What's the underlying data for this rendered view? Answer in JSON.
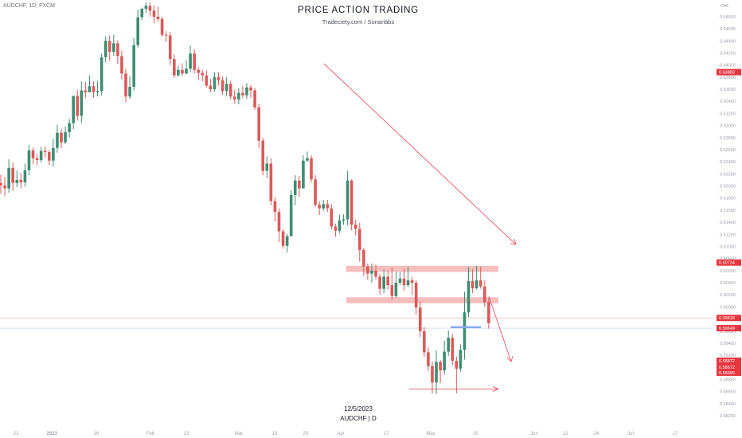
{
  "header": {
    "symbol": "AUDCHF, 1D, FXCM",
    "title": "PRICE  ACTION  TRADING",
    "subtitle": "Tradeciety.com / Sonarlabs",
    "currency": "CHF"
  },
  "footer": {
    "date": "12/5/2023",
    "pair": "AUDCHF | D"
  },
  "colors": {
    "up": "#3f8c72",
    "down": "#d95a5a",
    "zone": "#f4a8a8",
    "arrow": "#e8586a",
    "price_label": "#e8363f",
    "blue_line": "#8aa7f0",
    "axis_text": "#9a9ea8"
  },
  "chart_data": {
    "type": "candlestick",
    "axis": {
      "ylim": [
        0.5803,
        0.6501
      ],
      "ticks": [
        "0.64800",
        "0.64600",
        "0.64400",
        "0.64200",
        "0.64000",
        "0.63800",
        "0.63600",
        "0.63400",
        "0.63200",
        "0.63000",
        "0.62800",
        "0.62600",
        "0.62400",
        "0.62200",
        "0.62000",
        "0.61800",
        "0.61600",
        "0.61400",
        "0.61200",
        "0.61000",
        "0.60800",
        "0.60600",
        "0.60400",
        "0.60200",
        "0.60000",
        "0.59800",
        "0.59600",
        "0.59400",
        "0.59200",
        "0.59000",
        "0.58800",
        "0.58600",
        "0.58400",
        "0.58200",
        "0.58000",
        "0.57800",
        "0.57600"
      ],
      "x_labels": [
        "21",
        "2023",
        "16",
        "Feb",
        "13",
        "Mar",
        "13",
        "20",
        "Apr",
        "17",
        "May",
        "15",
        "Jun",
        "12",
        "24",
        "Jul",
        "17"
      ],
      "price_labels": [
        {
          "text": "0.63883",
          "value": 0.63883
        },
        {
          "text": "0.60734",
          "value": 0.60734
        },
        {
          "text": "0.59818",
          "value": 0.59818
        },
        {
          "text": "0.59649",
          "value": 0.59649
        },
        {
          "text": "0.58872",
          "value": 0.58872
        },
        {
          "text": "0.58672",
          "value": 0.58672
        },
        {
          "text": "0.58589",
          "value": 0.58589
        }
      ]
    },
    "zones": [
      {
        "from": 0.6058,
        "to": 0.6068
      },
      {
        "from": 0.6006,
        "to": 0.6016
      }
    ],
    "levels": [
      {
        "name": "support-line",
        "value": 0.58643
      },
      {
        "name": "blue-line",
        "value": 0.59665
      }
    ],
    "candles": [
      [
        0.6205,
        0.6201,
        0.6219,
        0.6187
      ],
      [
        0.6201,
        0.6196,
        0.6215,
        0.6183
      ],
      [
        0.6196,
        0.623,
        0.6244,
        0.6189
      ],
      [
        0.623,
        0.6205,
        0.6239,
        0.6192
      ],
      [
        0.6205,
        0.621,
        0.6226,
        0.6198
      ],
      [
        0.621,
        0.6206,
        0.6222,
        0.6196
      ],
      [
        0.6206,
        0.6226,
        0.6237,
        0.6199
      ],
      [
        0.6226,
        0.6259,
        0.6268,
        0.6218
      ],
      [
        0.6259,
        0.6246,
        0.6264,
        0.6236
      ],
      [
        0.6246,
        0.6243,
        0.6253,
        0.6234
      ],
      [
        0.6243,
        0.6258,
        0.6265,
        0.6239
      ],
      [
        0.6258,
        0.6256,
        0.6266,
        0.6247
      ],
      [
        0.6256,
        0.6242,
        0.626,
        0.6234
      ],
      [
        0.6242,
        0.6263,
        0.6278,
        0.6232
      ],
      [
        0.6263,
        0.6288,
        0.6301,
        0.6255
      ],
      [
        0.6288,
        0.6272,
        0.6294,
        0.6262
      ],
      [
        0.6272,
        0.6289,
        0.6298,
        0.6269
      ],
      [
        0.6289,
        0.6304,
        0.6311,
        0.628
      ],
      [
        0.6304,
        0.6349,
        0.6349,
        0.6294
      ],
      [
        0.6349,
        0.6316,
        0.6359,
        0.6308
      ],
      [
        0.6316,
        0.6358,
        0.6373,
        0.6304
      ],
      [
        0.6358,
        0.6355,
        0.6372,
        0.6346
      ],
      [
        0.6355,
        0.6365,
        0.6383,
        0.6357
      ],
      [
        0.6365,
        0.6355,
        0.6373,
        0.6346
      ],
      [
        0.6355,
        0.6357,
        0.6374,
        0.6348
      ],
      [
        0.6357,
        0.6413,
        0.6419,
        0.635
      ],
      [
        0.6413,
        0.644,
        0.6448,
        0.6405
      ],
      [
        0.644,
        0.6422,
        0.6449,
        0.6407
      ],
      [
        0.6422,
        0.6436,
        0.645,
        0.6415
      ],
      [
        0.6436,
        0.6415,
        0.6441,
        0.6402
      ],
      [
        0.6415,
        0.6386,
        0.6424,
        0.6376
      ],
      [
        0.6386,
        0.6348,
        0.6394,
        0.6339
      ],
      [
        0.6348,
        0.6364,
        0.6382,
        0.6344
      ],
      [
        0.6364,
        0.6433,
        0.6445,
        0.6357
      ],
      [
        0.6433,
        0.6479,
        0.6492,
        0.6429
      ],
      [
        0.6479,
        0.6493,
        0.6495,
        0.6474
      ],
      [
        0.6493,
        0.6498,
        0.6504,
        0.6486
      ],
      [
        0.6498,
        0.649,
        0.6504,
        0.648
      ],
      [
        0.649,
        0.648,
        0.6499,
        0.6469
      ],
      [
        0.648,
        0.6476,
        0.6496,
        0.6471
      ],
      [
        0.6476,
        0.645,
        0.648,
        0.6446
      ],
      [
        0.645,
        0.6449,
        0.6456,
        0.6438
      ],
      [
        0.6449,
        0.641,
        0.6455,
        0.64
      ],
      [
        0.641,
        0.6383,
        0.6417,
        0.6379
      ],
      [
        0.6383,
        0.6392,
        0.6399,
        0.6381
      ],
      [
        0.6392,
        0.6386,
        0.6403,
        0.6382
      ],
      [
        0.6386,
        0.6394,
        0.6408,
        0.6385
      ],
      [
        0.6394,
        0.6419,
        0.6432,
        0.6388
      ],
      [
        0.6419,
        0.6392,
        0.6426,
        0.6386
      ],
      [
        0.6392,
        0.6387,
        0.6396,
        0.6375
      ],
      [
        0.6387,
        0.6383,
        0.6392,
        0.6373
      ],
      [
        0.6383,
        0.6366,
        0.6391,
        0.6363
      ],
      [
        0.6366,
        0.636,
        0.6377,
        0.6355
      ],
      [
        0.636,
        0.638,
        0.6388,
        0.6356
      ],
      [
        0.638,
        0.6375,
        0.6388,
        0.6366
      ],
      [
        0.6375,
        0.6357,
        0.6381,
        0.6351
      ],
      [
        0.6357,
        0.6369,
        0.638,
        0.6349
      ],
      [
        0.6369,
        0.6348,
        0.6374,
        0.6343
      ],
      [
        0.6348,
        0.6343,
        0.6359,
        0.6336
      ],
      [
        0.6343,
        0.6354,
        0.6362,
        0.6335
      ],
      [
        0.6354,
        0.635,
        0.6365,
        0.6345
      ],
      [
        0.635,
        0.6363,
        0.637,
        0.6344
      ],
      [
        0.6363,
        0.6358,
        0.6367,
        0.6346
      ],
      [
        0.6358,
        0.633,
        0.6362,
        0.6326
      ],
      [
        0.633,
        0.6275,
        0.6336,
        0.6262
      ],
      [
        0.6275,
        0.6225,
        0.628,
        0.6218
      ],
      [
        0.6225,
        0.6237,
        0.6249,
        0.6213
      ],
      [
        0.6237,
        0.6175,
        0.6246,
        0.6168
      ],
      [
        0.6175,
        0.6157,
        0.6182,
        0.6141
      ],
      [
        0.6157,
        0.6125,
        0.6163,
        0.6107
      ],
      [
        0.6125,
        0.6101,
        0.6129,
        0.6096
      ],
      [
        0.6101,
        0.6117,
        0.6121,
        0.609
      ],
      [
        0.6117,
        0.6185,
        0.6193,
        0.6118
      ],
      [
        0.6185,
        0.6209,
        0.6218,
        0.6168
      ],
      [
        0.6209,
        0.6196,
        0.6217,
        0.6182
      ],
      [
        0.6196,
        0.6242,
        0.6251,
        0.6196
      ],
      [
        0.6242,
        0.6246,
        0.6257,
        0.624
      ],
      [
        0.6246,
        0.6211,
        0.6251,
        0.6206
      ],
      [
        0.6211,
        0.6169,
        0.6218,
        0.6165
      ],
      [
        0.6169,
        0.6163,
        0.6175,
        0.6152
      ],
      [
        0.6163,
        0.617,
        0.6177,
        0.6159
      ],
      [
        0.617,
        0.6163,
        0.6177,
        0.6157
      ],
      [
        0.6163,
        0.6133,
        0.617,
        0.6128
      ],
      [
        0.6133,
        0.6126,
        0.6138,
        0.6116
      ],
      [
        0.6126,
        0.6143,
        0.6152,
        0.6122
      ],
      [
        0.6143,
        0.6145,
        0.6153,
        0.6136
      ],
      [
        0.6145,
        0.6209,
        0.6225,
        0.6135
      ],
      [
        0.6209,
        0.6136,
        0.6211,
        0.6127
      ],
      [
        0.6136,
        0.6129,
        0.6144,
        0.6118
      ],
      [
        0.6129,
        0.6094,
        0.6139,
        0.6075
      ],
      [
        0.6094,
        0.6067,
        0.6098,
        0.6051
      ],
      [
        0.6067,
        0.6055,
        0.6072,
        0.6045
      ],
      [
        0.6055,
        0.606,
        0.6072,
        0.604
      ],
      [
        0.606,
        0.605,
        0.607,
        0.6045
      ],
      [
        0.605,
        0.603,
        0.6055,
        0.602
      ],
      [
        0.603,
        0.605,
        0.6062,
        0.6023
      ],
      [
        0.605,
        0.6036,
        0.606,
        0.6029
      ],
      [
        0.6036,
        0.6018,
        0.6065,
        0.6012
      ],
      [
        0.6018,
        0.604,
        0.6059,
        0.6015
      ],
      [
        0.604,
        0.6047,
        0.6058,
        0.6036
      ],
      [
        0.6047,
        0.6036,
        0.6063,
        0.6027
      ],
      [
        0.6036,
        0.6044,
        0.6066,
        0.6033
      ],
      [
        0.6044,
        0.604,
        0.605,
        0.602
      ],
      [
        0.604,
        0.5999,
        0.6044,
        0.5987
      ],
      [
        0.5999,
        0.596,
        0.6009,
        0.595
      ],
      [
        0.596,
        0.5925,
        0.5967,
        0.5918
      ],
      [
        0.5925,
        0.5902,
        0.5933,
        0.5894
      ],
      [
        0.5902,
        0.5875,
        0.5909,
        0.5857
      ],
      [
        0.5875,
        0.5909,
        0.5928,
        0.5856
      ],
      [
        0.5909,
        0.5895,
        0.5912,
        0.5874
      ],
      [
        0.5895,
        0.5926,
        0.5944,
        0.5888
      ],
      [
        0.5926,
        0.5949,
        0.5961,
        0.5919
      ],
      [
        0.5949,
        0.5911,
        0.5955,
        0.5904
      ],
      [
        0.5911,
        0.5898,
        0.5918,
        0.5857
      ],
      [
        0.5898,
        0.5929,
        0.5938,
        0.5893
      ],
      [
        0.5929,
        0.5991,
        0.6025,
        0.5913
      ],
      [
        0.5991,
        0.6043,
        0.6066,
        0.5983
      ],
      [
        0.6043,
        0.6031,
        0.6062,
        0.6023
      ],
      [
        0.6031,
        0.6044,
        0.6068,
        0.6029
      ],
      [
        0.6044,
        0.6034,
        0.6067,
        0.603
      ],
      [
        0.6034,
        0.6008,
        0.6044,
        0.6
      ],
      [
        0.6008,
        0.5973,
        0.6015,
        0.5964
      ]
    ]
  }
}
